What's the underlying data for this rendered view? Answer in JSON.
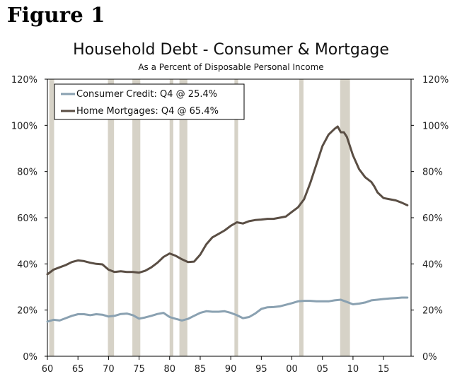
{
  "figure_label": "Figure 1",
  "chart_data": {
    "type": "line",
    "title": "Household Debt - Consumer & Mortgage",
    "subtitle": "As a Percent of Disposable Personal Income",
    "xlim": [
      1960,
      2019.5
    ],
    "ylim": [
      0,
      120
    ],
    "y_ticks": [
      "0%",
      "20%",
      "40%",
      "60%",
      "80%",
      "100%",
      "120%"
    ],
    "y_tick_values": [
      0,
      20,
      40,
      60,
      80,
      100,
      120
    ],
    "x_ticks": [
      "60",
      "65",
      "70",
      "75",
      "80",
      "85",
      "90",
      "95",
      "00",
      "05",
      "10",
      "15"
    ],
    "x_tick_values": [
      1960,
      1965,
      1970,
      1975,
      1980,
      1985,
      1990,
      1995,
      2000,
      2005,
      2010,
      2015
    ],
    "recessions": [
      [
        1960.3,
        1961.1
      ],
      [
        1969.9,
        1970.9
      ],
      [
        1973.9,
        1975.2
      ],
      [
        1980.0,
        1980.6
      ],
      [
        1981.6,
        1982.9
      ],
      [
        1990.6,
        1991.2
      ],
      [
        2001.2,
        2001.9
      ],
      [
        2007.9,
        2009.5
      ]
    ],
    "legend_position": "top-left",
    "grid": false,
    "colors": {
      "consumer": "#8aa1b1",
      "mortgage": "#5a4e44",
      "recession": "#d6d2c7"
    },
    "series": [
      {
        "name": "Consumer Credit: Q4 @ 25.4%",
        "key": "consumer",
        "x": [
          1960,
          1961,
          1962,
          1963,
          1964,
          1965,
          1966,
          1967,
          1968,
          1969,
          1970,
          1971,
          1972,
          1973,
          1974,
          1975,
          1976,
          1977,
          1978,
          1979,
          1980,
          1981,
          1982,
          1983,
          1984,
          1985,
          1986,
          1987,
          1988,
          1989,
          1990,
          1991,
          1992,
          1993,
          1994,
          1995,
          1996,
          1997,
          1998,
          1999,
          2000,
          2001,
          2002,
          2003,
          2004,
          2005,
          2006,
          2007,
          2008,
          2009,
          2010,
          2011,
          2012,
          2013,
          2014,
          2015,
          2016,
          2017,
          2018,
          2018.9
        ],
        "values": [
          15,
          15.8,
          15.5,
          16.5,
          17.5,
          18.2,
          18.2,
          17.8,
          18.2,
          18,
          17.2,
          17.5,
          18.3,
          18.5,
          17.8,
          16.3,
          16.8,
          17.5,
          18.3,
          18.8,
          17,
          16.2,
          15.5,
          16.2,
          17.5,
          18.8,
          19.5,
          19.3,
          19.3,
          19.5,
          18.8,
          17.8,
          16.5,
          17,
          18.5,
          20.5,
          21.2,
          21.3,
          21.6,
          22.3,
          23,
          23.8,
          24,
          24,
          23.8,
          23.8,
          23.8,
          24.2,
          24.5,
          23.5,
          22.5,
          22.8,
          23.3,
          24.2,
          24.5,
          24.8,
          25,
          25.2,
          25.4,
          25.4
        ]
      },
      {
        "name": "Home Mortgages: Q4 @ 65.4%",
        "key": "mortgage",
        "x": [
          1960,
          1961,
          1962,
          1963,
          1964,
          1965,
          1966,
          1967,
          1968,
          1969,
          1970,
          1971,
          1972,
          1973,
          1974,
          1975,
          1976,
          1977,
          1978,
          1979,
          1980,
          1981,
          1982,
          1983,
          1984,
          1985,
          1986,
          1987,
          1988,
          1989,
          1990,
          1991,
          1992,
          1993,
          1994,
          1995,
          1996,
          1997,
          1998,
          1999,
          2000,
          2001,
          2002,
          2003,
          2004,
          2005,
          2006,
          2007,
          2007.5,
          2008,
          2008.5,
          2009,
          2010,
          2011,
          2012,
          2013,
          2013.5,
          2014,
          2015,
          2016,
          2017,
          2018,
          2018.9
        ],
        "values": [
          35.5,
          37.5,
          38.5,
          39.5,
          40.8,
          41.5,
          41.2,
          40.5,
          40,
          39.8,
          37.5,
          36.5,
          36.8,
          36.5,
          36.5,
          36.2,
          37,
          38.5,
          40.5,
          43,
          44.5,
          43.5,
          42,
          40.8,
          41,
          44,
          48.5,
          51.5,
          53,
          54.5,
          56.5,
          58,
          57.5,
          58.5,
          59,
          59.2,
          59.5,
          59.5,
          60,
          60.5,
          62.5,
          64.5,
          68,
          75,
          83,
          91,
          96,
          98.5,
          99.5,
          97,
          97,
          95,
          87,
          81,
          77.5,
          75.5,
          73.5,
          71,
          68.5,
          68,
          67.5,
          66.5,
          65.4
        ]
      }
    ]
  }
}
